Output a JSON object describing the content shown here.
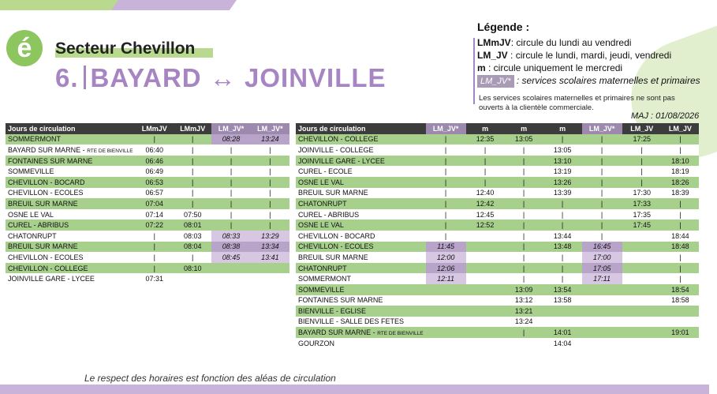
{
  "header": {
    "logo": "é",
    "sector": "Secteur Chevillon",
    "line_number": "6.",
    "from": "BAYARD",
    "arrow": "↔",
    "to": "JOINVILLE"
  },
  "legend": {
    "title": "Légende :",
    "items": [
      {
        "code": "LMmJV",
        "desc": ": circule du lundi au vendredi"
      },
      {
        "code": "LM_JV",
        "desc": ": circule le lundi, mardi, jeudi, vendredi"
      },
      {
        "code": "m",
        "desc": ": circule uniquement le mercredi"
      },
      {
        "code": "LM_JV*",
        "desc": ": services scolaires maternelles et primaires"
      }
    ],
    "note": "Les services scolaires maternelles et primaires ne sont pas ouverts à la clientèle commerciale.",
    "maj": "MAJ : 01/08/2026"
  },
  "footer": "Le respect des horaires est fonction des aléas de circulation",
  "table_left": {
    "headers": [
      "Jours de circulation",
      "LMmJV",
      "LMmJV",
      "LM_JV*",
      "LM_JV*"
    ],
    "school_cols": [
      3,
      4
    ],
    "rows": [
      {
        "stop": "SOMMERMONT",
        "note": "",
        "g": true,
        "times": [
          "|",
          "|",
          "08:28",
          "13:24"
        ]
      },
      {
        "stop": "BAYARD SUR MARNE - ",
        "note": "RTE DE BIENVILLE",
        "g": false,
        "times": [
          "06:40",
          "|",
          "|",
          "|"
        ]
      },
      {
        "stop": "FONTAINES SUR MARNE",
        "note": "",
        "g": true,
        "times": [
          "06:46",
          "|",
          "|",
          "|"
        ]
      },
      {
        "stop": "SOMMEVILLE",
        "note": "",
        "g": false,
        "times": [
          "06:49",
          "|",
          "|",
          "|"
        ]
      },
      {
        "stop": "CHEVILLON - BOCARD",
        "note": "",
        "g": true,
        "times": [
          "06:53",
          "|",
          "|",
          "|"
        ]
      },
      {
        "stop": "CHEVILLON - ECOLES",
        "note": "",
        "g": false,
        "times": [
          "06:57",
          "|",
          "|",
          "|"
        ]
      },
      {
        "stop": "BREUIL SUR MARNE",
        "note": "",
        "g": true,
        "times": [
          "07:04",
          "|",
          "|",
          "|"
        ]
      },
      {
        "stop": "OSNE LE VAL",
        "note": "",
        "g": false,
        "times": [
          "07:14",
          "07:50",
          "|",
          "|"
        ]
      },
      {
        "stop": "CUREL - ABRIBUS",
        "note": "",
        "g": true,
        "times": [
          "07:22",
          "08:01",
          "|",
          "|"
        ]
      },
      {
        "stop": "CHATONRUPT",
        "note": "",
        "g": false,
        "times": [
          "|",
          "08:03",
          "08:33",
          "13:29"
        ]
      },
      {
        "stop": "BREUIL SUR MARNE",
        "note": "",
        "g": true,
        "times": [
          "|",
          "08:04",
          "08:38",
          "13:34"
        ]
      },
      {
        "stop": "CHEVILLON - ECOLES",
        "note": "",
        "g": false,
        "times": [
          "|",
          "|",
          "08:45",
          "13:41"
        ]
      },
      {
        "stop": "CHEVILLON - COLLEGE",
        "note": "",
        "g": true,
        "times": [
          "|",
          "08:10",
          "",
          ""
        ]
      },
      {
        "stop": "JOINVILLE GARE - LYCEE",
        "note": "",
        "g": false,
        "times": [
          "07:31",
          "",
          "",
          ""
        ]
      }
    ]
  },
  "table_right": {
    "headers": [
      "Jours de circulation",
      "LM_JV*",
      "m",
      "m",
      "m",
      "LM_JV*",
      "LM_JV",
      "LM_JV"
    ],
    "school_cols": [
      1,
      5
    ],
    "rows": [
      {
        "stop": "CHEVILLON - COLLEGE",
        "note": "",
        "g": true,
        "times": [
          "|",
          "12:35",
          "13:05",
          "|",
          "|",
          "17:25",
          "|"
        ]
      },
      {
        "stop": "JOINVILLE - COLLEGE",
        "note": "",
        "g": false,
        "times": [
          "|",
          "|",
          "|",
          "13:05",
          "|",
          "|",
          "|"
        ]
      },
      {
        "stop": "JOINVILLE GARE - LYCEE",
        "note": "",
        "g": true,
        "times": [
          "|",
          "|",
          "|",
          "13:10",
          "|",
          "|",
          "18:10"
        ]
      },
      {
        "stop": "CUREL - ECOLE",
        "note": "",
        "g": false,
        "times": [
          "|",
          "|",
          "|",
          "13:19",
          "|",
          "|",
          "18:19"
        ]
      },
      {
        "stop": "OSNE LE VAL",
        "note": "",
        "g": true,
        "times": [
          "|",
          "|",
          "|",
          "13:26",
          "|",
          "|",
          "18:26"
        ]
      },
      {
        "stop": "BREUIL SUR MARNE",
        "note": "",
        "g": false,
        "times": [
          "|",
          "12:40",
          "|",
          "13:39",
          "|",
          "17:30",
          "18:39"
        ]
      },
      {
        "stop": "CHATONRUPT",
        "note": "",
        "g": true,
        "times": [
          "|",
          "12:42",
          "|",
          "|",
          "|",
          "17:33",
          "|"
        ]
      },
      {
        "stop": "CUREL - ABRIBUS",
        "note": "",
        "g": false,
        "times": [
          "|",
          "12:45",
          "|",
          "|",
          "|",
          "17:35",
          "|"
        ]
      },
      {
        "stop": "OSNE LE VAL",
        "note": "",
        "g": true,
        "times": [
          "|",
          "12:52",
          "|",
          "|",
          "|",
          "17:45",
          "|"
        ]
      },
      {
        "stop": "CHEVILLON - BOCARD",
        "note": "",
        "g": false,
        "times": [
          "|",
          "",
          "|",
          "13:44",
          "|",
          "",
          "18:44"
        ]
      },
      {
        "stop": "CHEVILLON - ECOLES",
        "note": "",
        "g": true,
        "times": [
          "11:45",
          "",
          "|",
          "13:48",
          "16:45",
          "",
          "18:48"
        ]
      },
      {
        "stop": "BREUIL SUR MARNE",
        "note": "",
        "g": false,
        "times": [
          "12:00",
          "",
          "|",
          "|",
          "17:00",
          "",
          "|"
        ]
      },
      {
        "stop": "CHATONRUPT",
        "note": "",
        "g": true,
        "times": [
          "12:06",
          "",
          "|",
          "|",
          "17:05",
          "",
          "|"
        ]
      },
      {
        "stop": "SOMMERMONT",
        "note": "",
        "g": false,
        "times": [
          "12:11",
          "",
          "|",
          "|",
          "17:11",
          "",
          "|"
        ]
      },
      {
        "stop": "SOMMEVILLE",
        "note": "",
        "g": true,
        "times": [
          "",
          "",
          "13:09",
          "13:54",
          "",
          "",
          "18:54"
        ]
      },
      {
        "stop": "FONTAINES SUR MARNE",
        "note": "",
        "g": false,
        "times": [
          "",
          "",
          "13:12",
          "13:58",
          "",
          "",
          "18:58"
        ]
      },
      {
        "stop": "BIENVILLE - EGLISE",
        "note": "",
        "g": true,
        "times": [
          "",
          "",
          "13:21",
          "",
          "",
          "",
          ""
        ]
      },
      {
        "stop": "BIENVILLE - SALLE DES FETES",
        "note": "",
        "g": false,
        "times": [
          "",
          "",
          "13:24",
          "",
          "",
          "",
          ""
        ]
      },
      {
        "stop": "BAYARD SUR MARNE - ",
        "note": "RTE DE BIENVILLE",
        "g": true,
        "times": [
          "",
          "",
          "|",
          "14:01",
          "",
          "",
          "19:01"
        ]
      },
      {
        "stop": "GOURZON",
        "note": "",
        "g": false,
        "times": [
          "",
          "",
          "",
          "14:04",
          "",
          "",
          ""
        ]
      }
    ]
  }
}
